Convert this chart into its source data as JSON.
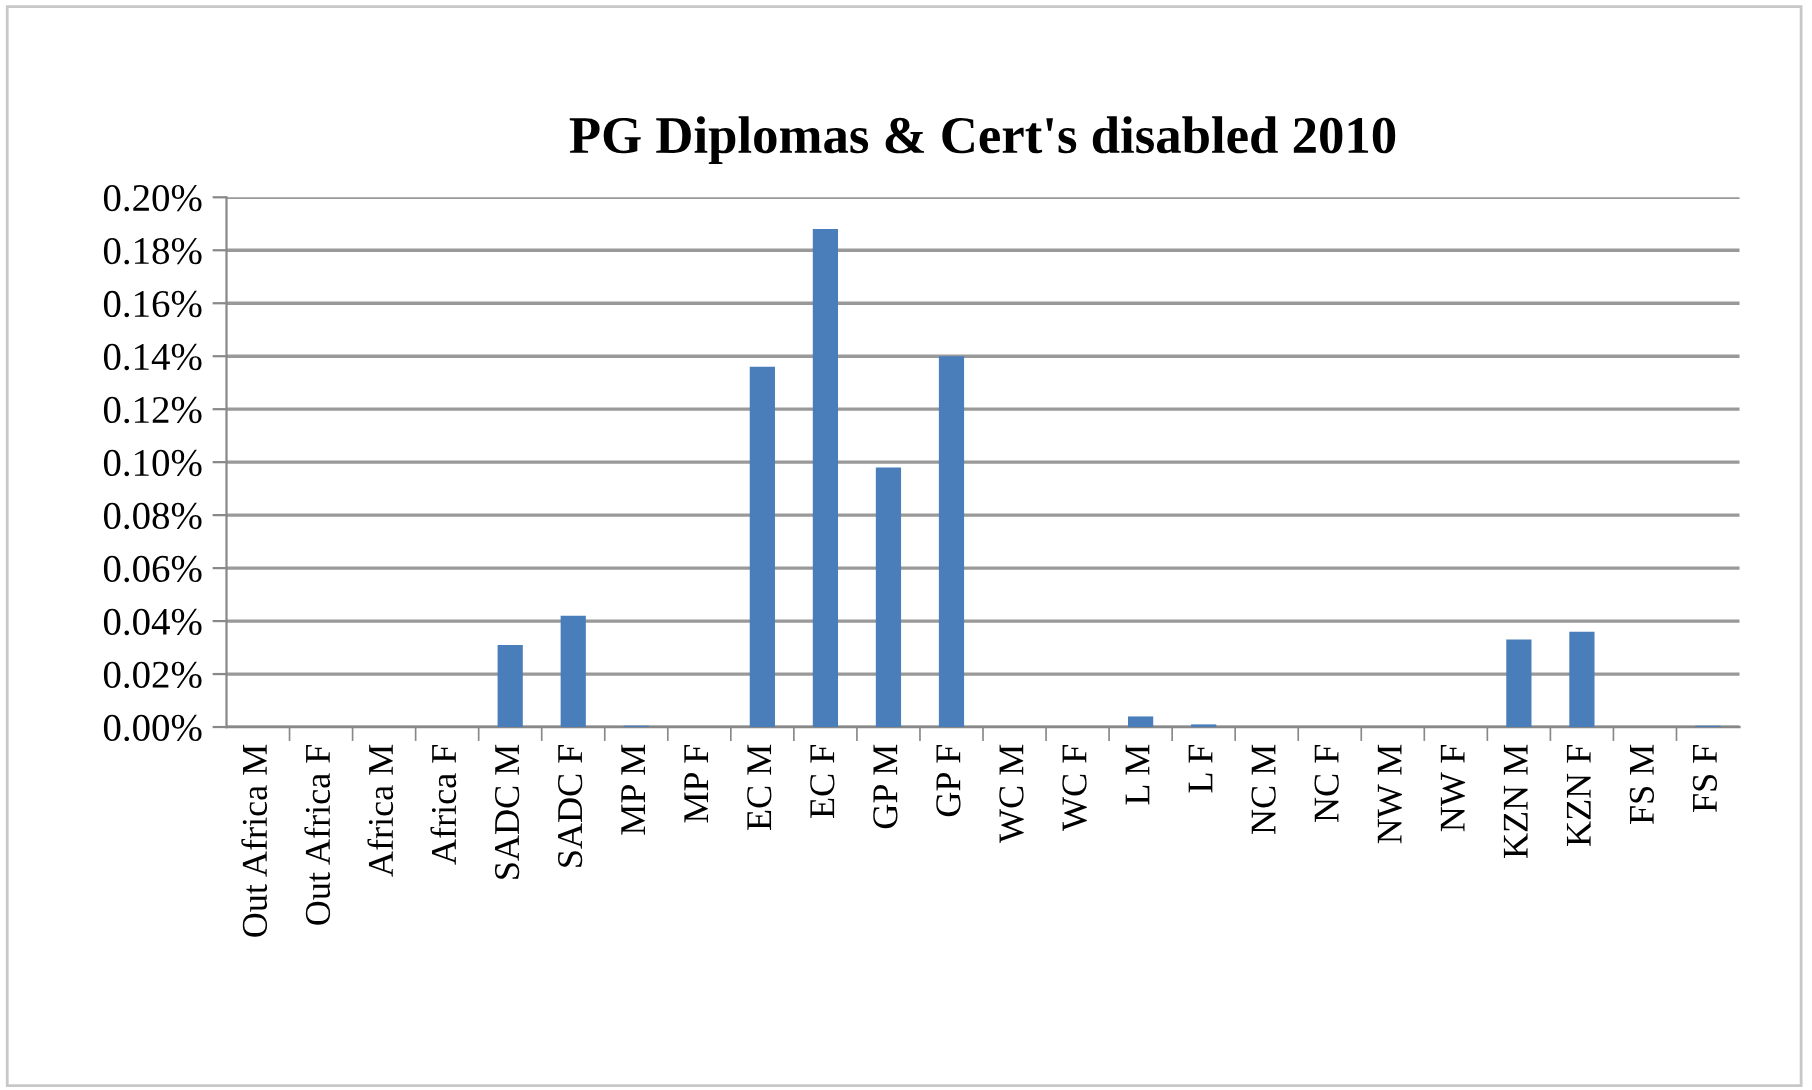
{
  "chart_data": {
    "type": "bar",
    "title": "PG Diplomas & Cert's disabled 2010",
    "categories": [
      "Out Africa M",
      "Out Africa F",
      "Africa M",
      "Africa F",
      "SADC M",
      "SADC F",
      "MP M",
      "MP F",
      "EC M",
      "EC F",
      "GP M",
      "GP F",
      "WC M",
      "WC F",
      "L M",
      "L F",
      "NC M",
      "NC F",
      "NW M",
      "NW F",
      "KZN M",
      "KZN F",
      "FS M",
      "FS F"
    ],
    "values": [
      0,
      0,
      0,
      0,
      0.031,
      0.042,
      0.0005,
      0,
      0.136,
      0.188,
      0.098,
      0.14,
      0,
      0,
      0.004,
      0.001,
      0,
      0,
      0,
      0,
      0.033,
      0.036,
      0,
      0.0005
    ],
    "color": "#4a7ebb",
    "ylim": [
      0,
      0.2
    ],
    "yticks": [
      {
        "value": 0,
        "label": "0.00%"
      },
      {
        "value": 0.02,
        "label": "0.02%"
      },
      {
        "value": 0.04,
        "label": "0.04%"
      },
      {
        "value": 0.06,
        "label": "0.06%"
      },
      {
        "value": 0.08,
        "label": "0.08%"
      },
      {
        "value": 0.1,
        "label": "0.10%"
      },
      {
        "value": 0.12,
        "label": "0.12%"
      },
      {
        "value": 0.14,
        "label": "0.14%"
      },
      {
        "value": 0.16,
        "label": "0.16%"
      },
      {
        "value": 0.18,
        "label": "0.18%"
      },
      {
        "value": 0.2,
        "label": "0.20%"
      }
    ],
    "grid": "y",
    "legend": false
  }
}
